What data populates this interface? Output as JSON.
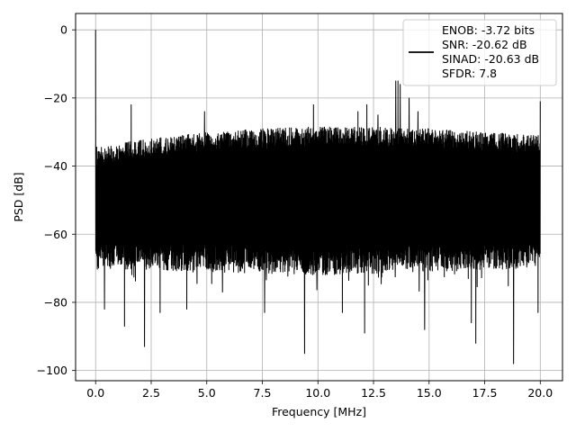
{
  "chart_data": {
    "type": "line",
    "xlabel": "Frequency [MHz]",
    "ylabel": "PSD [dB]",
    "xlim": [
      -0.9,
      21.0
    ],
    "ylim": [
      -103,
      4.8
    ],
    "grid": true,
    "legend_position": "top-right",
    "x_ticks": [
      0.0,
      2.5,
      5.0,
      7.5,
      10.0,
      12.5,
      15.0,
      17.5,
      20.0
    ],
    "x_tick_labels": [
      "0.0",
      "2.5",
      "5.0",
      "7.5",
      "10.0",
      "12.5",
      "15.0",
      "17.5",
      "20.0"
    ],
    "y_ticks": [
      0,
      -20,
      -40,
      -60,
      -80,
      -100
    ],
    "y_tick_labels": [
      "0",
      "−20",
      "−40",
      "−60",
      "−80",
      "−100"
    ],
    "series": [
      {
        "color": "#000000",
        "noise_floor_band": {
          "x_start": 0.0,
          "x_end": 20.0,
          "upper": [
            [
              0.0,
              -33
            ],
            [
              2.5,
              -31
            ],
            [
              5.0,
              -29
            ],
            [
              7.5,
              -28
            ],
            [
              10.0,
              -27.5
            ],
            [
              12.5,
              -27.5
            ],
            [
              15.0,
              -28
            ],
            [
              17.5,
              -29
            ],
            [
              20.0,
              -30
            ]
          ],
          "lower": [
            [
              0.0,
              -66
            ],
            [
              5.0,
              -67
            ],
            [
              10.0,
              -68
            ],
            [
              15.0,
              -67
            ],
            [
              20.0,
              -66
            ]
          ]
        },
        "peaks": [
          {
            "x": 0.0,
            "y": 0
          },
          {
            "x": 1.6,
            "y": -22
          },
          {
            "x": 4.9,
            "y": -24
          },
          {
            "x": 9.8,
            "y": -22
          },
          {
            "x": 11.8,
            "y": -24
          },
          {
            "x": 12.2,
            "y": -22
          },
          {
            "x": 12.7,
            "y": -25
          },
          {
            "x": 13.5,
            "y": -15
          },
          {
            "x": 13.6,
            "y": -15
          },
          {
            "x": 13.7,
            "y": -16
          },
          {
            "x": 14.1,
            "y": -20
          },
          {
            "x": 14.5,
            "y": -24
          },
          {
            "x": 20.0,
            "y": -21
          }
        ],
        "troughs": [
          {
            "x": 0.4,
            "y": -82
          },
          {
            "x": 1.3,
            "y": -87
          },
          {
            "x": 2.2,
            "y": -93
          },
          {
            "x": 2.9,
            "y": -83
          },
          {
            "x": 4.1,
            "y": -82
          },
          {
            "x": 7.6,
            "y": -83
          },
          {
            "x": 9.4,
            "y": -95
          },
          {
            "x": 11.1,
            "y": -83
          },
          {
            "x": 12.1,
            "y": -89
          },
          {
            "x": 14.8,
            "y": -88
          },
          {
            "x": 16.9,
            "y": -86
          },
          {
            "x": 17.1,
            "y": -92
          },
          {
            "x": 18.8,
            "y": -98
          },
          {
            "x": 19.9,
            "y": -83
          }
        ]
      }
    ],
    "legend": {
      "lines": [
        "ENOB: -3.72 bits",
        "SNR: -20.62 dB",
        "SINAD: -20.63 dB",
        "SFDR: 7.8"
      ]
    }
  }
}
